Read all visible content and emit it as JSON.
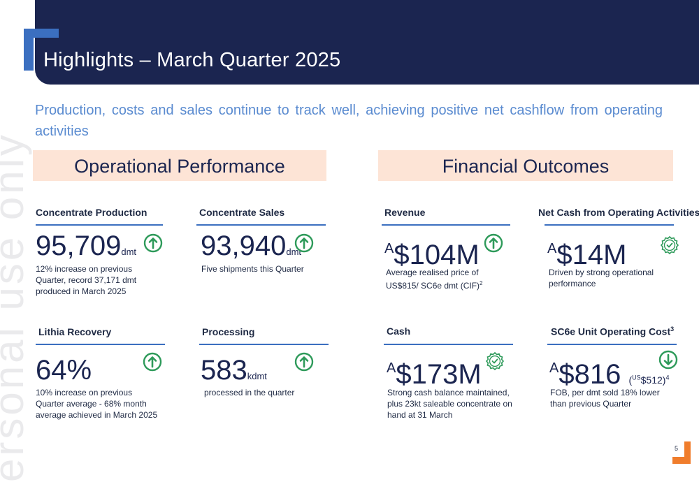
{
  "title": "Highlights – March Quarter 2025",
  "subtitle": "Production, costs and sales continue to track well, achieving positive net cashflow from operating activities",
  "watermark": "ersonal use only",
  "page_number": "5",
  "colors": {
    "navy": "#1b2550",
    "accent_blue": "#3b6fc0",
    "banner_peach": "#fde4d6",
    "up_green": "#2e9a5a",
    "orange": "#f07d2c"
  },
  "operational": {
    "heading": "Operational Performance",
    "concentrate_production": {
      "label": "Concentrate Production",
      "value": "95,709",
      "unit": "dmt",
      "icon": "up-arrow-icon",
      "desc": "12% increase on previous Quarter, record 37,171 dmt produced in March 2025"
    },
    "concentrate_sales": {
      "label": "Concentrate Sales",
      "value": "93,940",
      "unit": "dmt",
      "icon": "up-arrow-icon",
      "desc": "Five shipments this Quarter"
    },
    "lithia_recovery": {
      "label": "Lithia Recovery",
      "value": "64%",
      "icon": "up-arrow-icon",
      "desc": "10% increase on previous Quarter average - 68% month average achieved in March 2025"
    },
    "processing": {
      "label": "Processing",
      "value": "583",
      "unit": "kdmt",
      "icon": "up-arrow-icon",
      "desc": "processed in the quarter"
    }
  },
  "financial": {
    "heading": "Financial Outcomes",
    "revenue": {
      "label": "Revenue",
      "prefix": "A",
      "value": "$104M",
      "icon": "up-arrow-icon",
      "desc_main": "Average realised price of US$815/ SC6e dmt (CIF)",
      "desc_sup": "2"
    },
    "net_cash": {
      "label": "Net Cash from Operating Activities",
      "prefix": "A",
      "value": "$14M",
      "icon": "check-badge-icon",
      "desc": "Driven by strong operational performance"
    },
    "cash": {
      "label": "Cash",
      "prefix": "A",
      "value": "$173M",
      "icon": "check-badge-icon",
      "desc": "Strong cash balance maintained, plus 23kt saleable concentrate on hand at 31 March"
    },
    "unit_cost": {
      "label_main": "SC6e Unit Operating Cost",
      "label_sup": "3",
      "prefix": "A",
      "value": "$816",
      "paren_prefix": "US",
      "paren_value": "$512)",
      "paren_open": "(",
      "paren_sup": "4",
      "icon": "down-arrow-icon",
      "desc": "FOB, per dmt sold  18% lower than previous Quarter"
    }
  }
}
